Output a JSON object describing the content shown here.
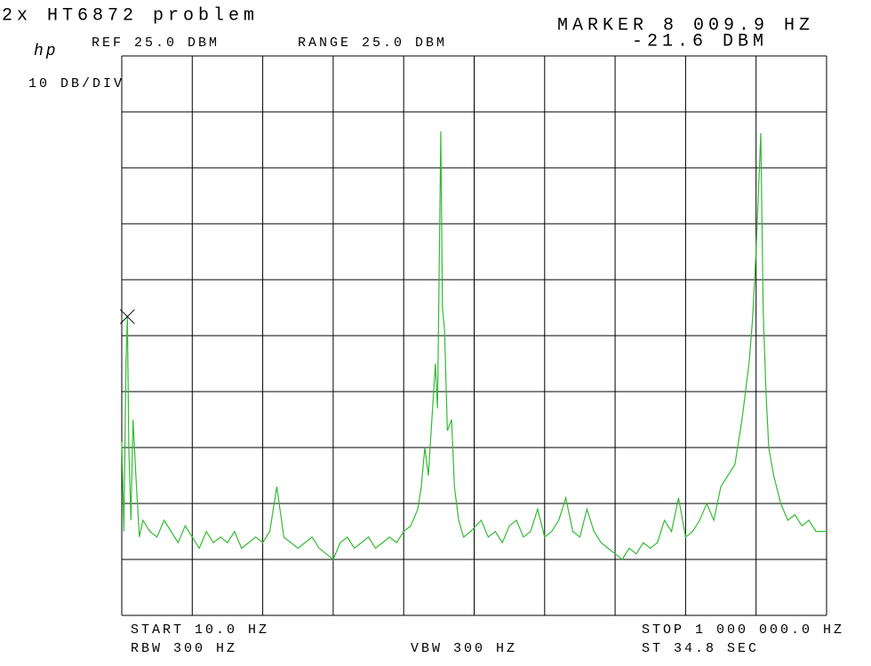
{
  "chart_data": {
    "type": "line",
    "title": "2x HT6872 problem",
    "logo": "hp",
    "scale_label": "10 DB/DIV",
    "ref_label": "REF 25.0 DBM",
    "range_label": "RANGE 25.0 DBM",
    "marker_label": "MARKER 8 009.9 HZ",
    "marker_value_label": "-21.6 DBM",
    "start_label": "START 10.0 HZ",
    "stop_label": "STOP 1 000 000.0 HZ",
    "rbw_label": "RBW 300 HZ",
    "vbw_label": "VBW 300 HZ",
    "sweep_label": "ST 34.8 SEC",
    "xlim": [
      10,
      1000000
    ],
    "ylim": [
      -75,
      25
    ],
    "xticks": [
      10,
      100009,
      200008,
      300007,
      400006,
      500005,
      600004,
      700003,
      800002,
      900001,
      1000000
    ],
    "yticks": [
      -75,
      -65,
      -55,
      -45,
      -35,
      -25,
      -15,
      -5,
      5,
      15,
      25
    ],
    "grid": true,
    "color": "#33bb33",
    "marker_index": 3,
    "x": [
      10,
      3000,
      6000,
      8009.9,
      10000,
      13000,
      16000,
      20000,
      25000,
      30000,
      40000,
      50000,
      60000,
      70000,
      80000,
      90000,
      100000,
      110000,
      120000,
      130000,
      140000,
      150000,
      160000,
      170000,
      180000,
      190000,
      200000,
      210000,
      220000,
      230000,
      240000,
      250000,
      260000,
      270000,
      280000,
      290000,
      300000,
      310000,
      320000,
      330000,
      340000,
      350000,
      360000,
      370000,
      380000,
      390000,
      400000,
      410000,
      420000,
      425000,
      430000,
      435000,
      440000,
      445000,
      448000,
      452700,
      455000,
      458000,
      462000,
      468000,
      472000,
      478000,
      485000,
      495000,
      510000,
      520000,
      530000,
      540000,
      550000,
      560000,
      570000,
      580000,
      590000,
      600000,
      610000,
      620000,
      630000,
      640000,
      650000,
      660000,
      670000,
      680000,
      690000,
      700000,
      710000,
      720000,
      730000,
      740000,
      750000,
      760000,
      770000,
      780000,
      790000,
      800000,
      810000,
      820000,
      830000,
      840000,
      850000,
      860000,
      870000,
      880000,
      890000,
      895000,
      900000,
      906700,
      910000,
      914000,
      918000,
      925000,
      935000,
      945000,
      955000,
      965000,
      975000,
      985000,
      1000000
    ],
    "values": [
      -44,
      -60,
      -30,
      -21.6,
      -45,
      -58,
      -40,
      -50,
      -61,
      -58,
      -60,
      -61,
      -58,
      -60,
      -62,
      -59,
      -61,
      -63,
      -60,
      -62,
      -61,
      -62,
      -60,
      -63,
      -62,
      -61,
      -62,
      -60,
      -52,
      -61,
      -62,
      -63,
      -62,
      -61,
      -63,
      -64,
      -65,
      -62,
      -61,
      -63,
      -62,
      -61,
      -63,
      -62,
      -61,
      -62,
      -60,
      -59,
      -56,
      -52,
      -45,
      -50,
      -40,
      -30,
      -38,
      11.5,
      -20,
      -24,
      -42,
      -40,
      -52,
      -58,
      -61,
      -60,
      -58,
      -61,
      -60,
      -62,
      -59,
      -58,
      -61,
      -60,
      -56,
      -61,
      -60,
      -58,
      -54,
      -60,
      -61,
      -56,
      -60,
      -62,
      -63,
      -64,
      -65,
      -63,
      -64,
      -62,
      -63,
      -62,
      -58,
      -60,
      -54,
      -61,
      -60,
      -58,
      -55,
      -58,
      -52,
      -50,
      -48,
      -40,
      -30,
      -22,
      -10,
      11.2,
      -20,
      -35,
      -45,
      -50,
      -55,
      -58,
      -57,
      -59,
      -58,
      -60,
      -60
    ]
  }
}
